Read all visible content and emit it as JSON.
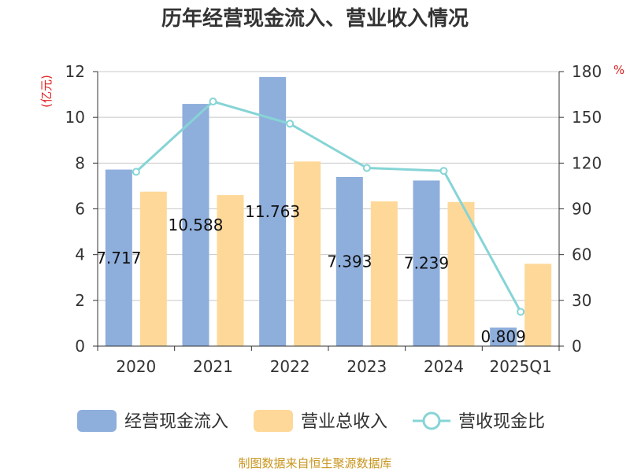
{
  "chart_data": {
    "type": "bar",
    "title": "历年经营现金流入、营业收入情况",
    "left_unit": "(亿元)",
    "right_unit": "%",
    "categories": [
      "2020",
      "2021",
      "2022",
      "2023",
      "2024",
      "2025Q1"
    ],
    "left_ylim": [
      0,
      12
    ],
    "left_ticks": [
      "0",
      "2",
      "4",
      "6",
      "8",
      "10",
      "12"
    ],
    "right_ylim": [
      0,
      180
    ],
    "right_ticks": [
      "0",
      "30",
      "60",
      "90",
      "120",
      "150",
      "180"
    ],
    "grid": true,
    "legend_position": "bottom",
    "series": [
      {
        "name": "经营现金流入",
        "type": "bar",
        "axis": "left",
        "color": "#8eaedc",
        "values": [
          7.717,
          10.588,
          11.763,
          7.393,
          7.239,
          0.809
        ],
        "labels": [
          "7.717",
          "10.588",
          "11.763",
          "7.393",
          "7.239",
          "0.809"
        ]
      },
      {
        "name": "营业总收入",
        "type": "bar",
        "axis": "left",
        "color": "#fdd898",
        "values": [
          6.75,
          6.6,
          8.07,
          6.33,
          6.3,
          3.6
        ]
      },
      {
        "name": "营收现金比",
        "type": "line",
        "axis": "right",
        "color": "#86d4d6",
        "values": [
          114.3,
          160.4,
          145.8,
          116.8,
          114.9,
          22.5
        ]
      }
    ],
    "source": "制图数据来自恒生聚源数据库"
  }
}
